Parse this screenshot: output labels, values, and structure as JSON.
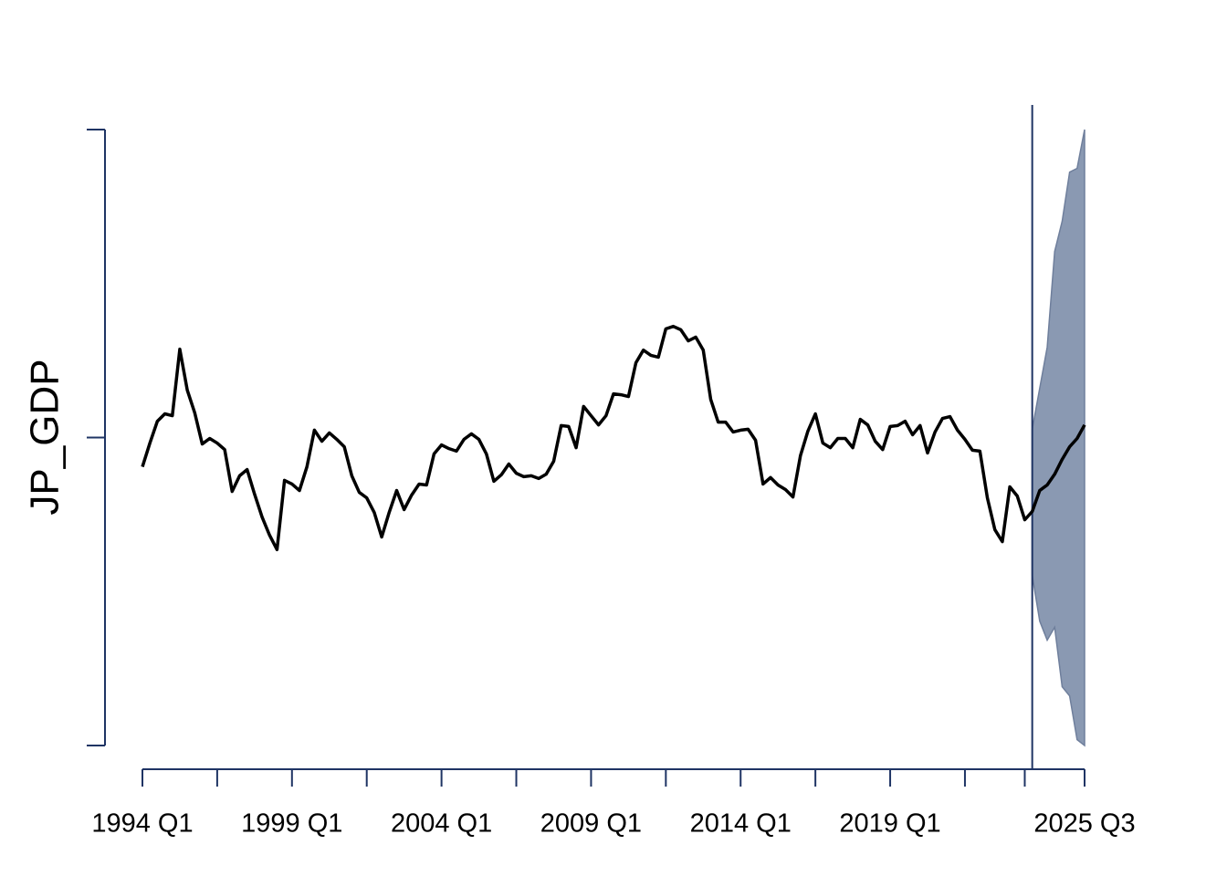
{
  "chart_data": {
    "type": "line",
    "y_label": "JP_GDP",
    "x": [
      1994,
      1994.25,
      1994.5,
      1994.75,
      1995,
      1995.25,
      1995.5,
      1995.75,
      1996,
      1996.25,
      1996.5,
      1996.75,
      1997,
      1997.25,
      1997.5,
      1997.75,
      1998,
      1998.25,
      1998.5,
      1998.75,
      1999,
      1999.25,
      1999.5,
      1999.75,
      2000,
      2000.25,
      2000.5,
      2000.75,
      2001,
      2001.25,
      2001.5,
      2001.75,
      2002,
      2002.25,
      2002.5,
      2002.75,
      2003,
      2003.25,
      2003.5,
      2003.75,
      2004,
      2004.25,
      2004.5,
      2004.75,
      2005,
      2005.25,
      2005.5,
      2005.75,
      2006,
      2006.25,
      2006.5,
      2006.75,
      2007,
      2007.25,
      2007.5,
      2007.75,
      2008,
      2008.25,
      2008.5,
      2008.75,
      2009,
      2009.25,
      2009.5,
      2009.75,
      2010,
      2010.25,
      2010.5,
      2010.75,
      2011,
      2011.25,
      2011.5,
      2011.75,
      2012,
      2012.25,
      2012.5,
      2012.75,
      2013,
      2013.25,
      2013.5,
      2013.75,
      2014,
      2014.25,
      2014.5,
      2014.75,
      2015,
      2015.25,
      2015.5,
      2015.75,
      2016,
      2016.25,
      2016.5,
      2016.75,
      2017,
      2017.25,
      2017.5,
      2017.75,
      2018,
      2018.25,
      2018.5,
      2018.75,
      2019,
      2019.25,
      2019.5,
      2019.75,
      2020,
      2020.25,
      2020.5,
      2020.75,
      2021,
      2021.25,
      2021.5,
      2021.75,
      2022,
      2022.25,
      2022.5,
      2022.75,
      2023,
      2023.25,
      2023.5,
      2023.75,
      2024,
      2024.25,
      2024.5,
      2024.75,
      2025,
      2025.25,
      2025.5
    ],
    "series": [
      {
        "name": "JP_GDP",
        "color": "#000000",
        "values": [
          -0.095,
          -0.018,
          0.053,
          0.077,
          0.071,
          0.287,
          0.154,
          0.08,
          -0.021,
          -0.003,
          -0.018,
          -0.039,
          -0.175,
          -0.124,
          -0.104,
          -0.184,
          -0.258,
          -0.317,
          -0.364,
          -0.139,
          -0.151,
          -0.172,
          -0.095,
          0.024,
          -0.012,
          0.015,
          -0.006,
          -0.03,
          -0.124,
          -0.178,
          -0.196,
          -0.243,
          -0.323,
          -0.243,
          -0.172,
          -0.234,
          -0.187,
          -0.151,
          -0.154,
          -0.053,
          -0.024,
          -0.036,
          -0.044,
          -0.006,
          0.012,
          -0.006,
          -0.053,
          -0.142,
          -0.121,
          -0.086,
          -0.116,
          -0.127,
          -0.124,
          -0.133,
          -0.119,
          -0.077,
          0.039,
          0.036,
          -0.033,
          0.101,
          0.071,
          0.041,
          0.071,
          0.142,
          0.139,
          0.133,
          0.243,
          0.284,
          0.267,
          0.261,
          0.353,
          0.361,
          0.35,
          0.314,
          0.326,
          0.284,
          0.124,
          0.05,
          0.05,
          0.018,
          0.024,
          0.027,
          -0.009,
          -0.151,
          -0.13,
          -0.154,
          -0.169,
          -0.193,
          -0.059,
          0.021,
          0.077,
          -0.018,
          -0.033,
          -0.003,
          -0.003,
          -0.033,
          0.059,
          0.041,
          -0.012,
          -0.039,
          0.036,
          0.039,
          0.053,
          0.009,
          0.039,
          -0.05,
          0.018,
          0.062,
          0.068,
          0.024,
          -0.006,
          -0.041,
          -0.044,
          -0.196,
          -0.299,
          -0.338,
          -0.16,
          -0.19,
          -0.267,
          -0.24,
          -0.172,
          -0.154,
          -0.119,
          -0.071,
          -0.03,
          -0.003,
          0.041
        ]
      }
    ],
    "band": {
      "color": "#8a99b2",
      "upper": [
        null,
        null,
        null,
        null,
        null,
        null,
        null,
        null,
        null,
        null,
        null,
        null,
        null,
        null,
        null,
        null,
        null,
        null,
        null,
        null,
        null,
        null,
        null,
        null,
        null,
        null,
        null,
        null,
        null,
        null,
        null,
        null,
        null,
        null,
        null,
        null,
        null,
        null,
        null,
        null,
        null,
        null,
        null,
        null,
        null,
        null,
        null,
        null,
        null,
        null,
        null,
        null,
        null,
        null,
        null,
        null,
        null,
        null,
        null,
        null,
        null,
        null,
        null,
        null,
        null,
        null,
        null,
        null,
        null,
        null,
        null,
        null,
        null,
        null,
        null,
        null,
        null,
        null,
        null,
        null,
        null,
        null,
        null,
        null,
        null,
        null,
        null,
        null,
        null,
        null,
        null,
        null,
        null,
        null,
        null,
        null,
        null,
        null,
        null,
        null,
        null,
        null,
        null,
        null,
        null,
        null,
        null,
        null,
        null,
        null,
        null,
        null,
        null,
        null,
        null,
        null,
        null,
        null,
        null,
        0.027,
        0.16,
        0.293,
        0.604,
        0.702,
        0.862,
        0.874,
        1.0
      ],
      "lower": [
        null,
        null,
        null,
        null,
        null,
        null,
        null,
        null,
        null,
        null,
        null,
        null,
        null,
        null,
        null,
        null,
        null,
        null,
        null,
        null,
        null,
        null,
        null,
        null,
        null,
        null,
        null,
        null,
        null,
        null,
        null,
        null,
        null,
        null,
        null,
        null,
        null,
        null,
        null,
        null,
        null,
        null,
        null,
        null,
        null,
        null,
        null,
        null,
        null,
        null,
        null,
        null,
        null,
        null,
        null,
        null,
        null,
        null,
        null,
        null,
        null,
        null,
        null,
        null,
        null,
        null,
        null,
        null,
        null,
        null,
        null,
        null,
        null,
        null,
        null,
        null,
        null,
        null,
        null,
        null,
        null,
        null,
        null,
        null,
        null,
        null,
        null,
        null,
        null,
        null,
        null,
        null,
        null,
        null,
        null,
        null,
        null,
        null,
        null,
        null,
        null,
        null,
        null,
        null,
        null,
        null,
        null,
        null,
        null,
        null,
        null,
        null,
        null,
        null,
        null,
        null,
        null,
        null,
        null,
        -0.447,
        -0.596,
        -0.658,
        -0.616,
        -0.809,
        -0.839,
        -0.981,
        -1.0
      ]
    },
    "forecast_start": 2023.75,
    "xlim": [
      1994,
      2025.5
    ],
    "xticks": [
      {
        "value": 1994,
        "label": "1994 Q1"
      },
      {
        "value": 1999,
        "label": "1999 Q1"
      },
      {
        "value": 2004,
        "label": "2004 Q1"
      },
      {
        "value": 2009,
        "label": "2009 Q1"
      },
      {
        "value": 2014,
        "label": "2014 Q1"
      },
      {
        "value": 2019,
        "label": "2019 Q1"
      },
      {
        "value": 2025.5,
        "label": "2025 Q3"
      }
    ],
    "xminor_ticks": [
      1996.5,
      2001.5,
      2006.5,
      2011.5,
      2016.5,
      2021.5,
      2023.5
    ],
    "ylim": [
      -1,
      1
    ],
    "yticks": [
      -1,
      0,
      1
    ],
    "axis_color": "#1f3464"
  }
}
